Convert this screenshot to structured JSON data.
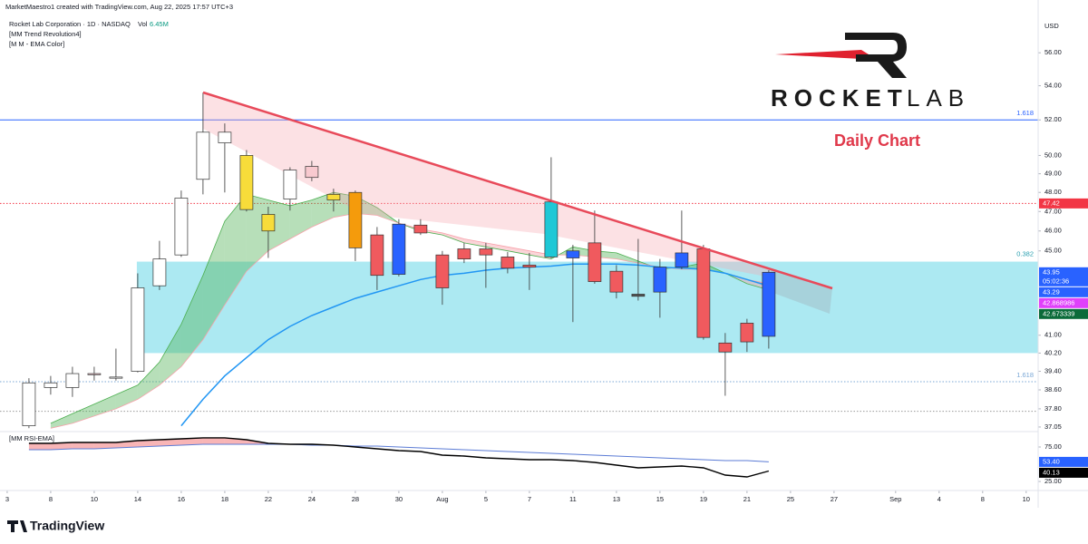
{
  "attribution": "MarketMaestro1 created with TradingView.com, Aug 22, 2025 17:57 UTC+3",
  "chart_data": {
    "type": "candlestick",
    "title": "Rocket Lab Corporation · 1D · NASDAQ",
    "volume_label": "Vol",
    "volume": "6.45M",
    "indicators": [
      "[MM Trend Revolution4]",
      "[M M - EMA Color]"
    ],
    "currency": "USD",
    "annotation": "Daily Chart",
    "log_scale": true,
    "ylim": [
      36.9,
      58.3
    ],
    "yticks": [
      {
        "value": 56,
        "label": "56.00"
      },
      {
        "value": 54,
        "label": "54.00"
      },
      {
        "value": 52,
        "label": "52.00"
      },
      {
        "value": 50,
        "label": "50.00"
      },
      {
        "value": 49,
        "label": "49.00"
      },
      {
        "value": 48,
        "label": "48.00"
      },
      {
        "value": 47,
        "label": "47.00"
      },
      {
        "value": 46,
        "label": "46.00"
      },
      {
        "value": 45,
        "label": "45.00"
      },
      {
        "value": 41,
        "label": "41.00"
      },
      {
        "value": 40.2,
        "label": "40.20"
      },
      {
        "value": 39.4,
        "label": "39.40"
      },
      {
        "value": 38.6,
        "label": "38.60"
      },
      {
        "value": 37.8,
        "label": "37.80"
      },
      {
        "value": 37.05,
        "label": "37.05"
      }
    ],
    "xlim": [
      -1.33,
      46.38
    ],
    "xticks": [
      {
        "value": -1,
        "label": "3"
      },
      {
        "value": 1,
        "label": "8"
      },
      {
        "value": 3,
        "label": "10"
      },
      {
        "value": 5,
        "label": "14"
      },
      {
        "value": 7,
        "label": "16"
      },
      {
        "value": 9,
        "label": "18"
      },
      {
        "value": 11,
        "label": "22"
      },
      {
        "value": 13,
        "label": "24"
      },
      {
        "value": 15,
        "label": "28"
      },
      {
        "value": 17,
        "label": "30"
      },
      {
        "value": 19,
        "label": "Aug"
      },
      {
        "value": 21,
        "label": "5"
      },
      {
        "value": 23,
        "label": "7"
      },
      {
        "value": 25,
        "label": "11"
      },
      {
        "value": 27,
        "label": "13"
      },
      {
        "value": 29,
        "label": "15"
      },
      {
        "value": 31,
        "label": "19"
      },
      {
        "value": 33,
        "label": "21"
      },
      {
        "value": 35,
        "label": "25"
      },
      {
        "value": 37,
        "label": "27"
      },
      {
        "value": 39.83,
        "label": "Sep"
      },
      {
        "value": 41.83,
        "label": "4"
      },
      {
        "value": 43.83,
        "label": "8"
      },
      {
        "value": 45.83,
        "label": "10"
      }
    ],
    "open": [
      37.1,
      38.7,
      38.7,
      39.3,
      39.1,
      39.4,
      43.3,
      44.8,
      48.7,
      50.7,
      50.0,
      46.85,
      47.65,
      49.4,
      47.9,
      48.0,
      45.8,
      43.85,
      46.3,
      44.8,
      45.1,
      45.1,
      44.7,
      44.3,
      44.7,
      44.65,
      45.4,
      44.0,
      42.9,
      43.0,
      44.2,
      45.1,
      40.65,
      41.55,
      40.95
    ],
    "high": [
      39.1,
      39.2,
      39.6,
      39.6,
      40.4,
      43.9,
      45.5,
      48.1,
      53.6,
      51.8,
      50.3,
      47.25,
      49.35,
      49.7,
      48.2,
      48.1,
      46.2,
      46.6,
      46.6,
      45.0,
      45.4,
      45.4,
      44.95,
      44.9,
      49.9,
      45.3,
      47.05,
      44.3,
      45.6,
      44.6,
      47.05,
      45.3,
      41.1,
      41.75,
      44.05
    ],
    "low": [
      37.0,
      38.4,
      38.3,
      39.0,
      39.0,
      39.35,
      43.1,
      44.7,
      47.9,
      48.0,
      47.0,
      44.65,
      47.05,
      48.6,
      47.0,
      44.5,
      43.1,
      43.75,
      45.8,
      42.4,
      44.4,
      43.2,
      43.9,
      43.1,
      44.65,
      41.6,
      43.4,
      42.7,
      42.6,
      41.8,
      44.1,
      40.8,
      38.35,
      40.25,
      40.4
    ],
    "close": [
      38.9,
      38.9,
      39.3,
      39.25,
      39.15,
      43.2,
      44.6,
      47.7,
      51.3,
      51.3,
      47.1,
      46.0,
      49.2,
      48.8,
      47.6,
      45.15,
      43.8,
      46.35,
      45.9,
      43.2,
      44.6,
      44.8,
      44.15,
      44.2,
      47.5,
      45.0,
      43.5,
      43.0,
      42.8,
      44.2,
      44.9,
      40.9,
      40.25,
      40.7,
      43.95
    ],
    "candle_colors": [
      "#ffffff",
      "#ffffff",
      "#ffffff",
      "#f8c9cf",
      "#ffffff",
      "#ffffff",
      "#ffffff",
      "#ffffff",
      "#ffffff",
      "#ffffff",
      "#f7dc3a",
      "#f7dc3a",
      "#ffffff",
      "#f8c9cf",
      "#f7dc3a",
      "#f59b0c",
      "#f05a5e",
      "#2962ff",
      "#f05a5e",
      "#f05a5e",
      "#f05a5e",
      "#f05a5e",
      "#f05a5e",
      "#f05a5e",
      "#1ec8d6",
      "#2962ff",
      "#f05a5e",
      "#f05a5e",
      "#555555",
      "#2962ff",
      "#2962ff",
      "#f05a5e",
      "#f05a5e",
      "#f05a5e",
      "#2962ff"
    ],
    "ema": {
      "color": "#2196f3",
      "values": [
        null,
        null,
        null,
        null,
        null,
        null,
        null,
        37.1,
        38.2,
        39.2,
        40.0,
        40.8,
        41.4,
        41.9,
        42.3,
        42.7,
        43.0,
        43.3,
        43.6,
        43.8,
        43.9,
        44.05,
        44.15,
        44.2,
        44.25,
        44.35,
        44.35,
        44.35,
        44.3,
        44.2,
        44.15,
        44.1,
        43.9,
        43.6,
        43.29
      ]
    },
    "ribbon": {
      "fast": [
        null,
        37.2,
        37.6,
        38.0,
        38.4,
        38.8,
        39.8,
        41.5,
        43.8,
        46.5,
        47.9,
        47.6,
        47.3,
        47.6,
        48.0,
        47.8,
        47.2,
        46.4,
        46.0,
        45.8,
        45.4,
        45.2,
        45.0,
        44.8,
        44.6,
        45.2,
        45.0,
        44.9,
        44.5,
        44.1,
        44.2,
        44.4,
        43.9,
        43.4,
        43.1
      ],
      "slow": [
        null,
        37.0,
        37.2,
        37.5,
        37.8,
        38.2,
        38.8,
        39.6,
        40.8,
        42.4,
        44.0,
        45.0,
        45.6,
        46.2,
        46.7,
        46.9,
        46.8,
        46.4,
        46.1,
        45.9,
        45.6,
        45.4,
        45.2,
        45.0,
        44.8,
        44.8,
        44.7,
        44.6,
        44.4,
        44.2,
        44.1,
        44.1,
        43.9,
        43.6,
        43.4
      ],
      "up_color": "#4caf50",
      "down_color": "#f7a1aa"
    },
    "levels": [
      {
        "value": 52,
        "label": "1.618",
        "color": "#2962ff",
        "style": "solid"
      },
      {
        "value": 47.42,
        "color": "#f23645",
        "style": "dotted"
      },
      {
        "value": 38.95,
        "label": "1.618",
        "color": "#7aa7d6",
        "style": "dotted"
      },
      {
        "value": 37.7,
        "color": "#999999",
        "style": "dotted"
      }
    ],
    "zone": {
      "low": 40.2,
      "high": 44.47,
      "label": "0.382",
      "color": "#5ad3e6"
    },
    "price_tags": [
      {
        "value": 47.42,
        "color": "#f23645"
      },
      {
        "value": 43.95,
        "color": "#2962ff",
        "countdown": "05:02:36"
      },
      {
        "value": 43.29,
        "color": "#2962ff"
      },
      {
        "value": 42.868986,
        "color": "#e040fb"
      },
      {
        "value": 42.673339,
        "color": "#0b6b3a"
      }
    ],
    "rsi": {
      "title": "[MM RSI-EMA]",
      "ylim": [
        13.2,
        94.7
      ],
      "yticks": [
        {
          "value": 75,
          "label": "75.00"
        },
        {
          "value": 25,
          "label": "25.00"
        }
      ],
      "rsi": {
        "color": "#000000",
        "values": [
          80.3,
          80.3,
          81.6,
          81.6,
          81.6,
          84.2,
          85.5,
          86.8,
          88.2,
          88.2,
          85.5,
          80.3,
          78.9,
          78.9,
          77.6,
          75.0,
          72.4,
          69.7,
          68.4,
          63.2,
          61.8,
          59.2,
          57.9,
          56.6,
          56.6,
          55.3,
          52.6,
          48.7,
          44.7,
          46.1,
          47.4,
          44.7,
          34.2,
          31.6,
          40.13
        ]
      },
      "ema": {
        "color": "#5b7bd5",
        "values": [
          71.1,
          71.1,
          72.4,
          72.4,
          73.7,
          75.0,
          76.3,
          77.6,
          78.9,
          78.9,
          78.9,
          78.9,
          78.9,
          77.6,
          77.6,
          76.3,
          76.3,
          75.0,
          73.7,
          72.4,
          71.1,
          69.7,
          68.4,
          67.1,
          65.8,
          64.5,
          63.2,
          61.8,
          60.5,
          59.2,
          57.9,
          56.6,
          55.3,
          55.3,
          53.4
        ]
      },
      "fill_color": "#f05a5e",
      "tags": [
        {
          "value": 53.4,
          "label": "53.40",
          "color": "#2962ff"
        },
        {
          "value": 40.13,
          "color": "#000000"
        }
      ]
    }
  },
  "logo": {
    "bold": "ROCKET",
    "light": "LAB"
  },
  "footer": "TradingView"
}
